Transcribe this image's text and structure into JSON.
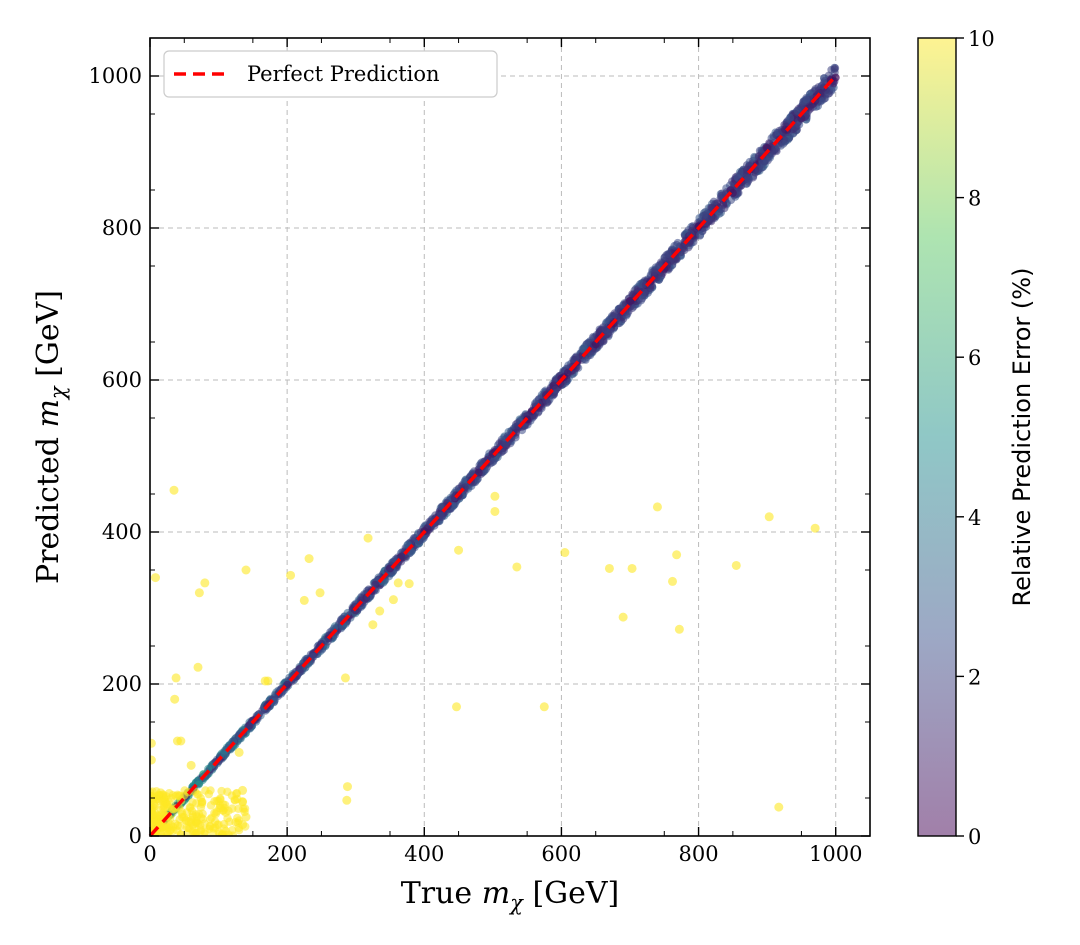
{
  "chart_data": {
    "type": "scatter",
    "title": "",
    "xlabel": "True",
    "ylabel": "Predicted",
    "axis_symbol": "m",
    "axis_subscript": "χ",
    "axis_unit": "[GeV]",
    "xlim": [
      0,
      1050
    ],
    "ylim": [
      0,
      1050
    ],
    "xticks": [
      0,
      200,
      400,
      600,
      800,
      1000
    ],
    "yticks": [
      0,
      200,
      400,
      600,
      800,
      1000
    ],
    "grid": true,
    "legend": {
      "placement": "top-left",
      "entries": [
        {
          "label": "Perfect Prediction",
          "style": "dashed",
          "color": "#ff0000"
        }
      ]
    },
    "reference_line": {
      "name": "Perfect Prediction",
      "x": [
        0,
        1000
      ],
      "y": [
        0,
        1000
      ],
      "color": "#ff0000",
      "style": "dashed"
    },
    "colorbar": {
      "label": "Relative Prediction Error (%)",
      "range": [
        0,
        10
      ],
      "ticks": [
        0,
        2,
        4,
        6,
        8,
        10
      ],
      "colormap": "viridis",
      "alpha": 0.5
    },
    "main_band": {
      "description": "dense points along the diagonal",
      "x_range": [
        0,
        1000
      ],
      "typical_error_pct": 1.2,
      "samples": [
        [
          20,
          19,
          1.5
        ],
        [
          50,
          51,
          1.6
        ],
        [
          100,
          98,
          2.0
        ],
        [
          150,
          152,
          1.3
        ],
        [
          200,
          199,
          0.9
        ],
        [
          250,
          253,
          1.4
        ],
        [
          300,
          297,
          1.1
        ],
        [
          350,
          352,
          0.8
        ],
        [
          400,
          401,
          0.7
        ],
        [
          450,
          448,
          0.9
        ],
        [
          500,
          503,
          0.8
        ],
        [
          550,
          548,
          0.6
        ],
        [
          600,
          602,
          0.5
        ],
        [
          650,
          647,
          0.7
        ],
        [
          700,
          704,
          0.6
        ],
        [
          750,
          746,
          0.8
        ],
        [
          800,
          802,
          0.5
        ],
        [
          850,
          846,
          0.7
        ],
        [
          900,
          905,
          0.6
        ],
        [
          950,
          944,
          0.9
        ],
        [
          1000,
          998,
          0.4
        ]
      ]
    },
    "outliers": [
      {
        "x": 35,
        "y": 455,
        "err": 10
      },
      {
        "x": 8,
        "y": 340,
        "err": 10
      },
      {
        "x": 72,
        "y": 320,
        "err": 10
      },
      {
        "x": 80,
        "y": 333,
        "err": 10
      },
      {
        "x": 140,
        "y": 350,
        "err": 10
      },
      {
        "x": 38,
        "y": 208,
        "err": 10
      },
      {
        "x": 36,
        "y": 180,
        "err": 10
      },
      {
        "x": 70,
        "y": 222,
        "err": 10
      },
      {
        "x": 40,
        "y": 125,
        "err": 10
      },
      {
        "x": 45,
        "y": 125,
        "err": 10
      },
      {
        "x": 2,
        "y": 122,
        "err": 10
      },
      {
        "x": 2,
        "y": 100,
        "err": 10
      },
      {
        "x": 60,
        "y": 93,
        "err": 10
      },
      {
        "x": 130,
        "y": 110,
        "err": 10
      },
      {
        "x": 135,
        "y": 60,
        "err": 10
      },
      {
        "x": 135,
        "y": 45,
        "err": 10
      },
      {
        "x": 140,
        "y": 25,
        "err": 10
      },
      {
        "x": 135,
        "y": 15,
        "err": 10
      },
      {
        "x": 205,
        "y": 343,
        "err": 10
      },
      {
        "x": 225,
        "y": 310,
        "err": 10
      },
      {
        "x": 232,
        "y": 365,
        "err": 10
      },
      {
        "x": 248,
        "y": 320,
        "err": 10
      },
      {
        "x": 285,
        "y": 208,
        "err": 10
      },
      {
        "x": 288,
        "y": 65,
        "err": 10
      },
      {
        "x": 287,
        "y": 47,
        "err": 10
      },
      {
        "x": 318,
        "y": 392,
        "err": 10
      },
      {
        "x": 325,
        "y": 278,
        "err": 10
      },
      {
        "x": 335,
        "y": 296,
        "err": 10
      },
      {
        "x": 355,
        "y": 311,
        "err": 10
      },
      {
        "x": 362,
        "y": 333,
        "err": 10
      },
      {
        "x": 378,
        "y": 332,
        "err": 10
      },
      {
        "x": 450,
        "y": 376,
        "err": 10
      },
      {
        "x": 447,
        "y": 170,
        "err": 10
      },
      {
        "x": 503,
        "y": 447,
        "err": 10
      },
      {
        "x": 503,
        "y": 427,
        "err": 10
      },
      {
        "x": 535,
        "y": 354,
        "err": 10
      },
      {
        "x": 575,
        "y": 170,
        "err": 10
      },
      {
        "x": 605,
        "y": 373,
        "err": 10
      },
      {
        "x": 670,
        "y": 352,
        "err": 10
      },
      {
        "x": 690,
        "y": 288,
        "err": 10
      },
      {
        "x": 703,
        "y": 352,
        "err": 10
      },
      {
        "x": 740,
        "y": 433,
        "err": 10
      },
      {
        "x": 762,
        "y": 335,
        "err": 10
      },
      {
        "x": 768,
        "y": 370,
        "err": 10
      },
      {
        "x": 772,
        "y": 272,
        "err": 10
      },
      {
        "x": 855,
        "y": 356,
        "err": 10
      },
      {
        "x": 903,
        "y": 420,
        "err": 10
      },
      {
        "x": 917,
        "y": 38,
        "err": 10
      },
      {
        "x": 970,
        "y": 405,
        "err": 10
      },
      {
        "x": 168,
        "y": 204,
        "err": 10
      },
      {
        "x": 172,
        "y": 204,
        "err": 10
      }
    ],
    "low_mass_cluster": {
      "x_range": [
        0,
        140
      ],
      "y_range": [
        0,
        60
      ],
      "err": 10
    }
  }
}
